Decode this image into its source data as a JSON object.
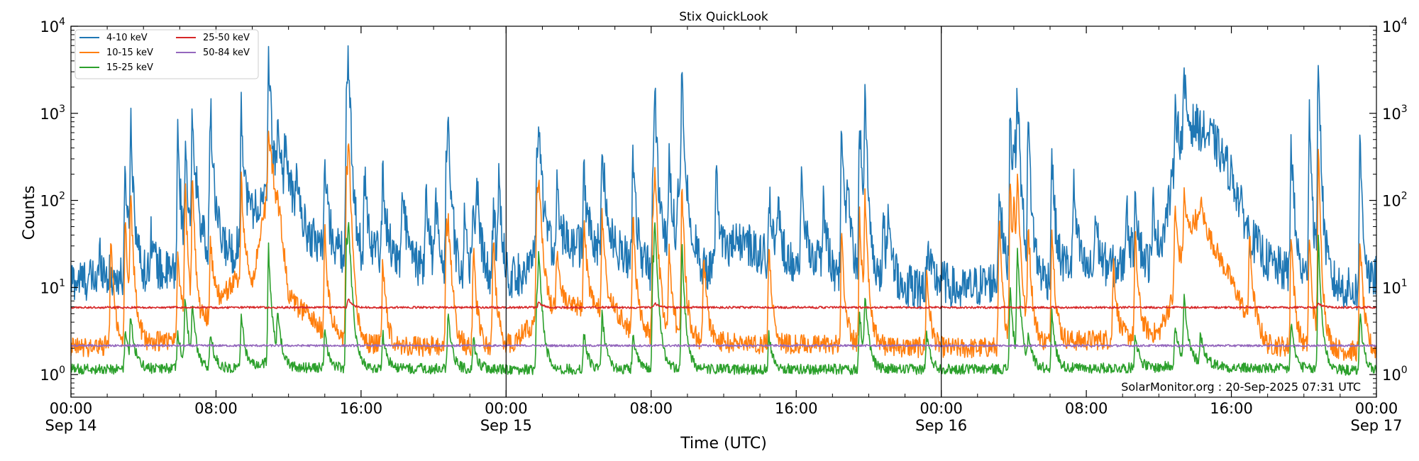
{
  "chart_data": {
    "type": "line",
    "title": "Stix QuickLook",
    "xlabel": "Time (UTC)",
    "ylabel": "Counts",
    "yscale": "log",
    "ylim": [
      0.55,
      10000
    ],
    "xlim_hours": [
      0,
      72
    ],
    "y_ticks": [
      {
        "value": 1,
        "base": "10",
        "exp": "0"
      },
      {
        "value": 10,
        "base": "10",
        "exp": "1"
      },
      {
        "value": 100,
        "base": "10",
        "exp": "2"
      },
      {
        "value": 1000,
        "base": "10",
        "exp": "3"
      },
      {
        "value": 10000,
        "base": "10",
        "exp": "4"
      }
    ],
    "x_ticks": [
      {
        "hour": 0,
        "time": "00:00",
        "date": "Sep 14"
      },
      {
        "hour": 8,
        "time": "08:00",
        "date": ""
      },
      {
        "hour": 16,
        "time": "16:00",
        "date": ""
      },
      {
        "hour": 24,
        "time": "00:00",
        "date": "Sep 15"
      },
      {
        "hour": 32,
        "time": "08:00",
        "date": ""
      },
      {
        "hour": 40,
        "time": "16:00",
        "date": ""
      },
      {
        "hour": 48,
        "time": "00:00",
        "date": "Sep 16"
      },
      {
        "hour": 56,
        "time": "08:00",
        "date": ""
      },
      {
        "hour": 64,
        "time": "16:00",
        "date": ""
      },
      {
        "hour": 72,
        "time": "00:00",
        "date": "Sep 17"
      }
    ],
    "day_dividers_hours": [
      24,
      48
    ],
    "legend_position": "upper-left",
    "annotation": "SolarMonitor.org : 20-Sep-2025 07:31 UTC",
    "series": [
      {
        "name": "4-10 keV",
        "color": "#1f77b4",
        "baseline": [
          [
            0,
            12
          ],
          [
            3,
            13
          ],
          [
            6,
            15
          ],
          [
            8,
            30
          ],
          [
            9,
            25
          ],
          [
            10,
            70
          ],
          [
            11,
            110
          ],
          [
            12,
            90
          ],
          [
            13,
            40
          ],
          [
            14,
            30
          ],
          [
            16,
            20
          ],
          [
            17,
            25
          ],
          [
            19,
            18
          ],
          [
            21,
            12
          ],
          [
            23,
            12
          ],
          [
            24,
            10
          ],
          [
            26,
            25
          ],
          [
            28,
            30
          ],
          [
            30,
            28
          ],
          [
            31,
            20
          ],
          [
            32,
            15
          ],
          [
            34,
            40
          ],
          [
            35,
            15
          ],
          [
            37,
            35
          ],
          [
            39,
            18
          ],
          [
            40,
            20
          ],
          [
            41,
            22
          ],
          [
            42,
            14
          ],
          [
            44,
            12
          ],
          [
            46,
            10
          ],
          [
            47,
            10
          ],
          [
            48,
            12
          ],
          [
            49,
            9
          ],
          [
            51,
            12
          ],
          [
            52,
            14
          ],
          [
            54,
            12
          ],
          [
            55,
            18
          ],
          [
            56,
            15
          ],
          [
            58,
            18
          ],
          [
            59,
            16
          ],
          [
            60,
            22
          ],
          [
            61,
            300
          ],
          [
            62,
            700
          ],
          [
            63,
            500
          ],
          [
            64,
            200
          ],
          [
            65,
            40
          ],
          [
            66,
            20
          ],
          [
            67,
            15
          ],
          [
            68,
            12
          ],
          [
            70,
            10
          ],
          [
            71,
            9
          ],
          [
            72,
            9
          ]
        ],
        "peaks": [
          [
            1.6,
            25
          ],
          [
            3.0,
            250
          ],
          [
            3.3,
            900
          ],
          [
            4.4,
            50
          ],
          [
            5.9,
            700
          ],
          [
            6.3,
            350
          ],
          [
            6.7,
            1000
          ],
          [
            6.9,
            170
          ],
          [
            7.7,
            1400
          ],
          [
            9.4,
            1400
          ],
          [
            10.9,
            6000
          ],
          [
            11.4,
            900
          ],
          [
            11.8,
            500
          ],
          [
            12.4,
            200
          ],
          [
            14.0,
            250
          ],
          [
            15.2,
            1500
          ],
          [
            15.3,
            4200
          ],
          [
            16.2,
            200
          ],
          [
            17.2,
            200
          ],
          [
            18.3,
            150
          ],
          [
            19.6,
            120
          ],
          [
            20.1,
            110
          ],
          [
            20.7,
            300
          ],
          [
            20.8,
            700
          ],
          [
            21.7,
            70
          ],
          [
            22.2,
            110
          ],
          [
            22.4,
            150
          ],
          [
            23.3,
            90
          ],
          [
            23.6,
            200
          ],
          [
            25.7,
            400
          ],
          [
            25.8,
            500
          ],
          [
            26.8,
            170
          ],
          [
            28.3,
            200
          ],
          [
            29.3,
            550
          ],
          [
            31.0,
            400
          ],
          [
            32.1,
            300
          ],
          [
            32.2,
            1800
          ],
          [
            33.0,
            300
          ],
          [
            33.5,
            200
          ],
          [
            33.7,
            3200
          ],
          [
            35.6,
            200
          ],
          [
            38.5,
            120
          ],
          [
            39.0,
            100
          ],
          [
            40.3,
            150
          ],
          [
            41.5,
            100
          ],
          [
            42.5,
            600
          ],
          [
            42.8,
            170
          ],
          [
            43.5,
            1100
          ],
          [
            43.8,
            1400
          ],
          [
            44.8,
            60
          ],
          [
            45.1,
            75
          ],
          [
            47.2,
            30
          ],
          [
            51.2,
            170
          ],
          [
            51.8,
            1400
          ],
          [
            52.0,
            700
          ],
          [
            52.2,
            2100
          ],
          [
            52.8,
            900
          ],
          [
            54.1,
            400
          ],
          [
            55.3,
            150
          ],
          [
            56.5,
            70
          ],
          [
            58.2,
            100
          ],
          [
            58.7,
            150
          ],
          [
            59.7,
            100
          ],
          [
            60.9,
            1400
          ],
          [
            61.4,
            2300
          ],
          [
            67.3,
            600
          ],
          [
            68.3,
            1500
          ],
          [
            68.8,
            6200
          ],
          [
            71.1,
            500
          ],
          [
            71.9,
            15
          ]
        ],
        "noise": 0.25
      },
      {
        "name": "10-15 keV",
        "color": "#ff7f0e",
        "baseline": [
          [
            0,
            2
          ],
          [
            4,
            2.3
          ],
          [
            7,
            2.7
          ],
          [
            8,
            6
          ],
          [
            9,
            12
          ],
          [
            10,
            10
          ],
          [
            11,
            200
          ],
          [
            12,
            7
          ],
          [
            13,
            5
          ],
          [
            14,
            3
          ],
          [
            16,
            2.2
          ],
          [
            24,
            2
          ],
          [
            25,
            3
          ],
          [
            26,
            5
          ],
          [
            28,
            6
          ],
          [
            30,
            5
          ],
          [
            31,
            3
          ],
          [
            34,
            2.4
          ],
          [
            40,
            2.2
          ],
          [
            42,
            2.2
          ],
          [
            48,
            2
          ],
          [
            50,
            2
          ],
          [
            55,
            2.4
          ],
          [
            58,
            2.6
          ],
          [
            60,
            3
          ],
          [
            61,
            10
          ],
          [
            62,
            60
          ],
          [
            63,
            30
          ],
          [
            64,
            12
          ],
          [
            65,
            4
          ],
          [
            66,
            2.2
          ],
          [
            68,
            2
          ],
          [
            72,
            1.8
          ]
        ],
        "peaks": [
          [
            2.2,
            40
          ],
          [
            3.0,
            70
          ],
          [
            3.3,
            120
          ],
          [
            5.9,
            30
          ],
          [
            6.3,
            180
          ],
          [
            6.7,
            200
          ],
          [
            7.7,
            35
          ],
          [
            9.4,
            170
          ],
          [
            10.9,
            600
          ],
          [
            11.4,
            100
          ],
          [
            14.0,
            50
          ],
          [
            15.2,
            250
          ],
          [
            15.3,
            500
          ],
          [
            17.2,
            25
          ],
          [
            20.7,
            60
          ],
          [
            20.8,
            60
          ],
          [
            22.2,
            30
          ],
          [
            23.3,
            40
          ],
          [
            25.7,
            150
          ],
          [
            25.8,
            180
          ],
          [
            26.8,
            30
          ],
          [
            28.3,
            60
          ],
          [
            29.3,
            70
          ],
          [
            31.0,
            80
          ],
          [
            32.1,
            80
          ],
          [
            32.2,
            250
          ],
          [
            33.0,
            30
          ],
          [
            33.7,
            180
          ],
          [
            34.9,
            25
          ],
          [
            38.5,
            30
          ],
          [
            42.5,
            40
          ],
          [
            43.5,
            80
          ],
          [
            43.8,
            120
          ],
          [
            47.2,
            15
          ],
          [
            51.2,
            60
          ],
          [
            51.8,
            200
          ],
          [
            52.0,
            120
          ],
          [
            52.2,
            200
          ],
          [
            52.8,
            60
          ],
          [
            54.1,
            60
          ],
          [
            57.5,
            20
          ],
          [
            58.7,
            40
          ],
          [
            60.9,
            90
          ],
          [
            61.4,
            120
          ],
          [
            62.3,
            100
          ],
          [
            65.0,
            40
          ],
          [
            67.3,
            50
          ],
          [
            68.3,
            40
          ],
          [
            68.8,
            400
          ],
          [
            71.1,
            40
          ]
        ],
        "noise": 0.12
      },
      {
        "name": "15-25 keV",
        "color": "#2ca02c",
        "baseline": [
          [
            0,
            1.15
          ],
          [
            10,
            1.2
          ],
          [
            11,
            1.4
          ],
          [
            12,
            1.2
          ],
          [
            24,
            1.15
          ],
          [
            36,
            1.15
          ],
          [
            48,
            1.15
          ],
          [
            60,
            1.2
          ],
          [
            62,
            1.4
          ],
          [
            63,
            1.3
          ],
          [
            64,
            1.2
          ],
          [
            72,
            1.1
          ]
        ],
        "peaks": [
          [
            3.0,
            3
          ],
          [
            3.3,
            5
          ],
          [
            5.9,
            3
          ],
          [
            6.3,
            8
          ],
          [
            6.7,
            6
          ],
          [
            7.7,
            3
          ],
          [
            9.4,
            5
          ],
          [
            10.9,
            30
          ],
          [
            11.4,
            5
          ],
          [
            14.0,
            3
          ],
          [
            15.2,
            40
          ],
          [
            15.3,
            60
          ],
          [
            17.2,
            3
          ],
          [
            20.8,
            5
          ],
          [
            22.2,
            2.5
          ],
          [
            25.7,
            8
          ],
          [
            25.8,
            25
          ],
          [
            28.3,
            3
          ],
          [
            29.3,
            5
          ],
          [
            31.0,
            3
          ],
          [
            32.1,
            20
          ],
          [
            32.2,
            55
          ],
          [
            33.7,
            35
          ],
          [
            38.5,
            3
          ],
          [
            43.5,
            5
          ],
          [
            43.8,
            8
          ],
          [
            47.2,
            3
          ],
          [
            51.8,
            10
          ],
          [
            52.2,
            30
          ],
          [
            52.8,
            3
          ],
          [
            54.1,
            5
          ],
          [
            58.7,
            3
          ],
          [
            60.9,
            4
          ],
          [
            61.4,
            8
          ],
          [
            62.3,
            3
          ],
          [
            67.3,
            4
          ],
          [
            68.8,
            40
          ],
          [
            71.1,
            5
          ]
        ],
        "noise": 0.06
      },
      {
        "name": "25-50 keV",
        "color": "#d62728",
        "baseline": [
          [
            0,
            5.9
          ],
          [
            72,
            5.9
          ]
        ],
        "peaks": [
          [
            15.3,
            7.5
          ],
          [
            25.8,
            6.8
          ],
          [
            32.2,
            6.6
          ],
          [
            68.8,
            6.6
          ]
        ],
        "noise": 0.012
      },
      {
        "name": "50-84 keV",
        "color": "#9467bd",
        "baseline": [
          [
            0,
            2.15
          ],
          [
            72,
            2.15
          ]
        ],
        "peaks": [],
        "noise": 0.012
      }
    ]
  }
}
